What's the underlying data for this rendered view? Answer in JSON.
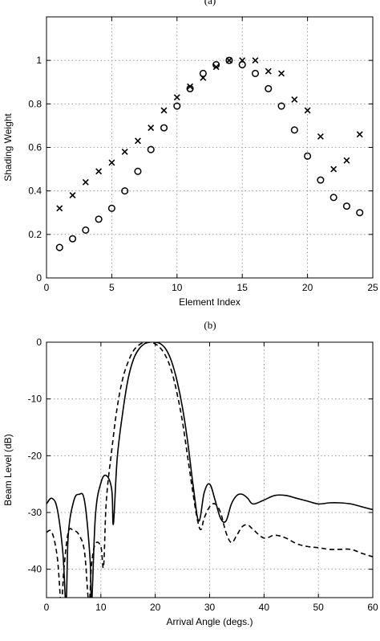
{
  "figure": {
    "panel_a_label": "(a)",
    "panel_b_label": "(b)"
  },
  "chart_data": [
    {
      "type": "scatter",
      "xlabel": "Element Index",
      "ylabel": "Shading Weight",
      "xlim": [
        0,
        25
      ],
      "ylim": [
        0,
        1.2
      ],
      "xticks": [
        0,
        5,
        10,
        15,
        20,
        25
      ],
      "yticks": [
        0,
        0.2,
        0.4,
        0.6,
        0.8,
        1
      ],
      "grid": true,
      "series": [
        {
          "marker": "o",
          "x": [
            1,
            2,
            3,
            4,
            5,
            6,
            7,
            8,
            9,
            10,
            11,
            12,
            13,
            14,
            15,
            16,
            17,
            18,
            19,
            20,
            21,
            22,
            23,
            24
          ],
          "values": [
            0.14,
            0.18,
            0.22,
            0.27,
            0.32,
            0.4,
            0.49,
            0.59,
            0.69,
            0.79,
            0.87,
            0.94,
            0.98,
            1.0,
            0.98,
            0.94,
            0.87,
            0.79,
            0.68,
            0.56,
            0.45,
            0.37,
            0.33,
            0.3
          ]
        },
        {
          "marker": "x",
          "x": [
            1,
            2,
            3,
            4,
            5,
            6,
            7,
            8,
            9,
            10,
            11,
            12,
            13,
            14,
            15,
            16,
            17,
            18,
            19,
            20,
            21,
            22,
            23,
            24
          ],
          "values": [
            0.32,
            0.38,
            0.44,
            0.49,
            0.53,
            0.58,
            0.63,
            0.69,
            0.77,
            0.83,
            0.88,
            0.92,
            0.97,
            1.0,
            1.0,
            1.0,
            0.95,
            0.94,
            0.82,
            0.77,
            0.65,
            0.5,
            0.54,
            0.66
          ]
        }
      ]
    },
    {
      "type": "line",
      "xlabel": "Arrival Angle (degs.)",
      "ylabel": "Beam Level (dB)",
      "xlim": [
        0,
        60
      ],
      "ylim": [
        -45,
        0
      ],
      "xticks": [
        0,
        10,
        20,
        30,
        40,
        50,
        60
      ],
      "yticks": [
        0,
        -10,
        -20,
        -30,
        -40
      ],
      "grid": true,
      "series": [
        {
          "style": "solid",
          "x": [
            0,
            1,
            2,
            3,
            3.6,
            4,
            5,
            6,
            7,
            8,
            8.3,
            9,
            10,
            11,
            12,
            12.3,
            13,
            14,
            15,
            16,
            17,
            18,
            19,
            20,
            21,
            22,
            23,
            24,
            25,
            26,
            27,
            28,
            29,
            30,
            31,
            32,
            33,
            34,
            35,
            36,
            37,
            38,
            40,
            42,
            44,
            46,
            48,
            50,
            52,
            54,
            56,
            58,
            60
          ],
          "values": [
            -28.5,
            -27.5,
            -29.5,
            -37,
            -46,
            -34,
            -28,
            -26.8,
            -28,
            -38,
            -46,
            -30.5,
            -24.8,
            -23.5,
            -26,
            -32,
            -20.5,
            -12.5,
            -6.5,
            -3,
            -1.2,
            -0.3,
            0,
            0,
            -0.3,
            -1.3,
            -3.4,
            -6.8,
            -11.5,
            -17.8,
            -25.5,
            -31.5,
            -26.5,
            -25,
            -27.8,
            -31,
            -31.5,
            -28.5,
            -27,
            -26.8,
            -27.5,
            -28.5,
            -27.8,
            -27,
            -27,
            -27.5,
            -28,
            -28.5,
            -28.3,
            -28.3,
            -28.5,
            -29,
            -29.5
          ]
        },
        {
          "style": "dashed",
          "x": [
            0,
            1,
            2,
            2.7,
            3.2,
            4,
            5,
            6,
            7,
            7.8,
            8.3,
            9,
            10,
            10.5,
            11,
            12,
            13,
            14,
            15,
            16,
            17,
            18,
            19,
            20,
            21,
            22,
            23,
            24,
            25,
            26,
            27,
            27.8,
            28.4,
            29,
            30,
            31,
            32,
            33,
            34,
            35,
            36,
            37,
            38,
            40,
            42,
            44,
            46,
            48,
            50,
            52,
            54,
            56,
            58,
            60
          ],
          "values": [
            -33.5,
            -33.5,
            -38,
            -46,
            -40,
            -33.5,
            -33.2,
            -34,
            -37,
            -46,
            -39,
            -35.5,
            -36,
            -39.5,
            -28,
            -19,
            -11.5,
            -6.5,
            -3.5,
            -1.5,
            -0.5,
            0,
            0,
            -0.3,
            -1.1,
            -2.6,
            -5.1,
            -9,
            -14,
            -20.5,
            -27,
            -31.5,
            -33,
            -31,
            -29,
            -28.5,
            -30,
            -33.5,
            -35.3,
            -34,
            -32.5,
            -32.2,
            -33,
            -34.5,
            -34,
            -34.5,
            -35.5,
            -36,
            -36.2,
            -36.5,
            -36.5,
            -36.5,
            -37.2,
            -37.8
          ]
        }
      ]
    }
  ]
}
